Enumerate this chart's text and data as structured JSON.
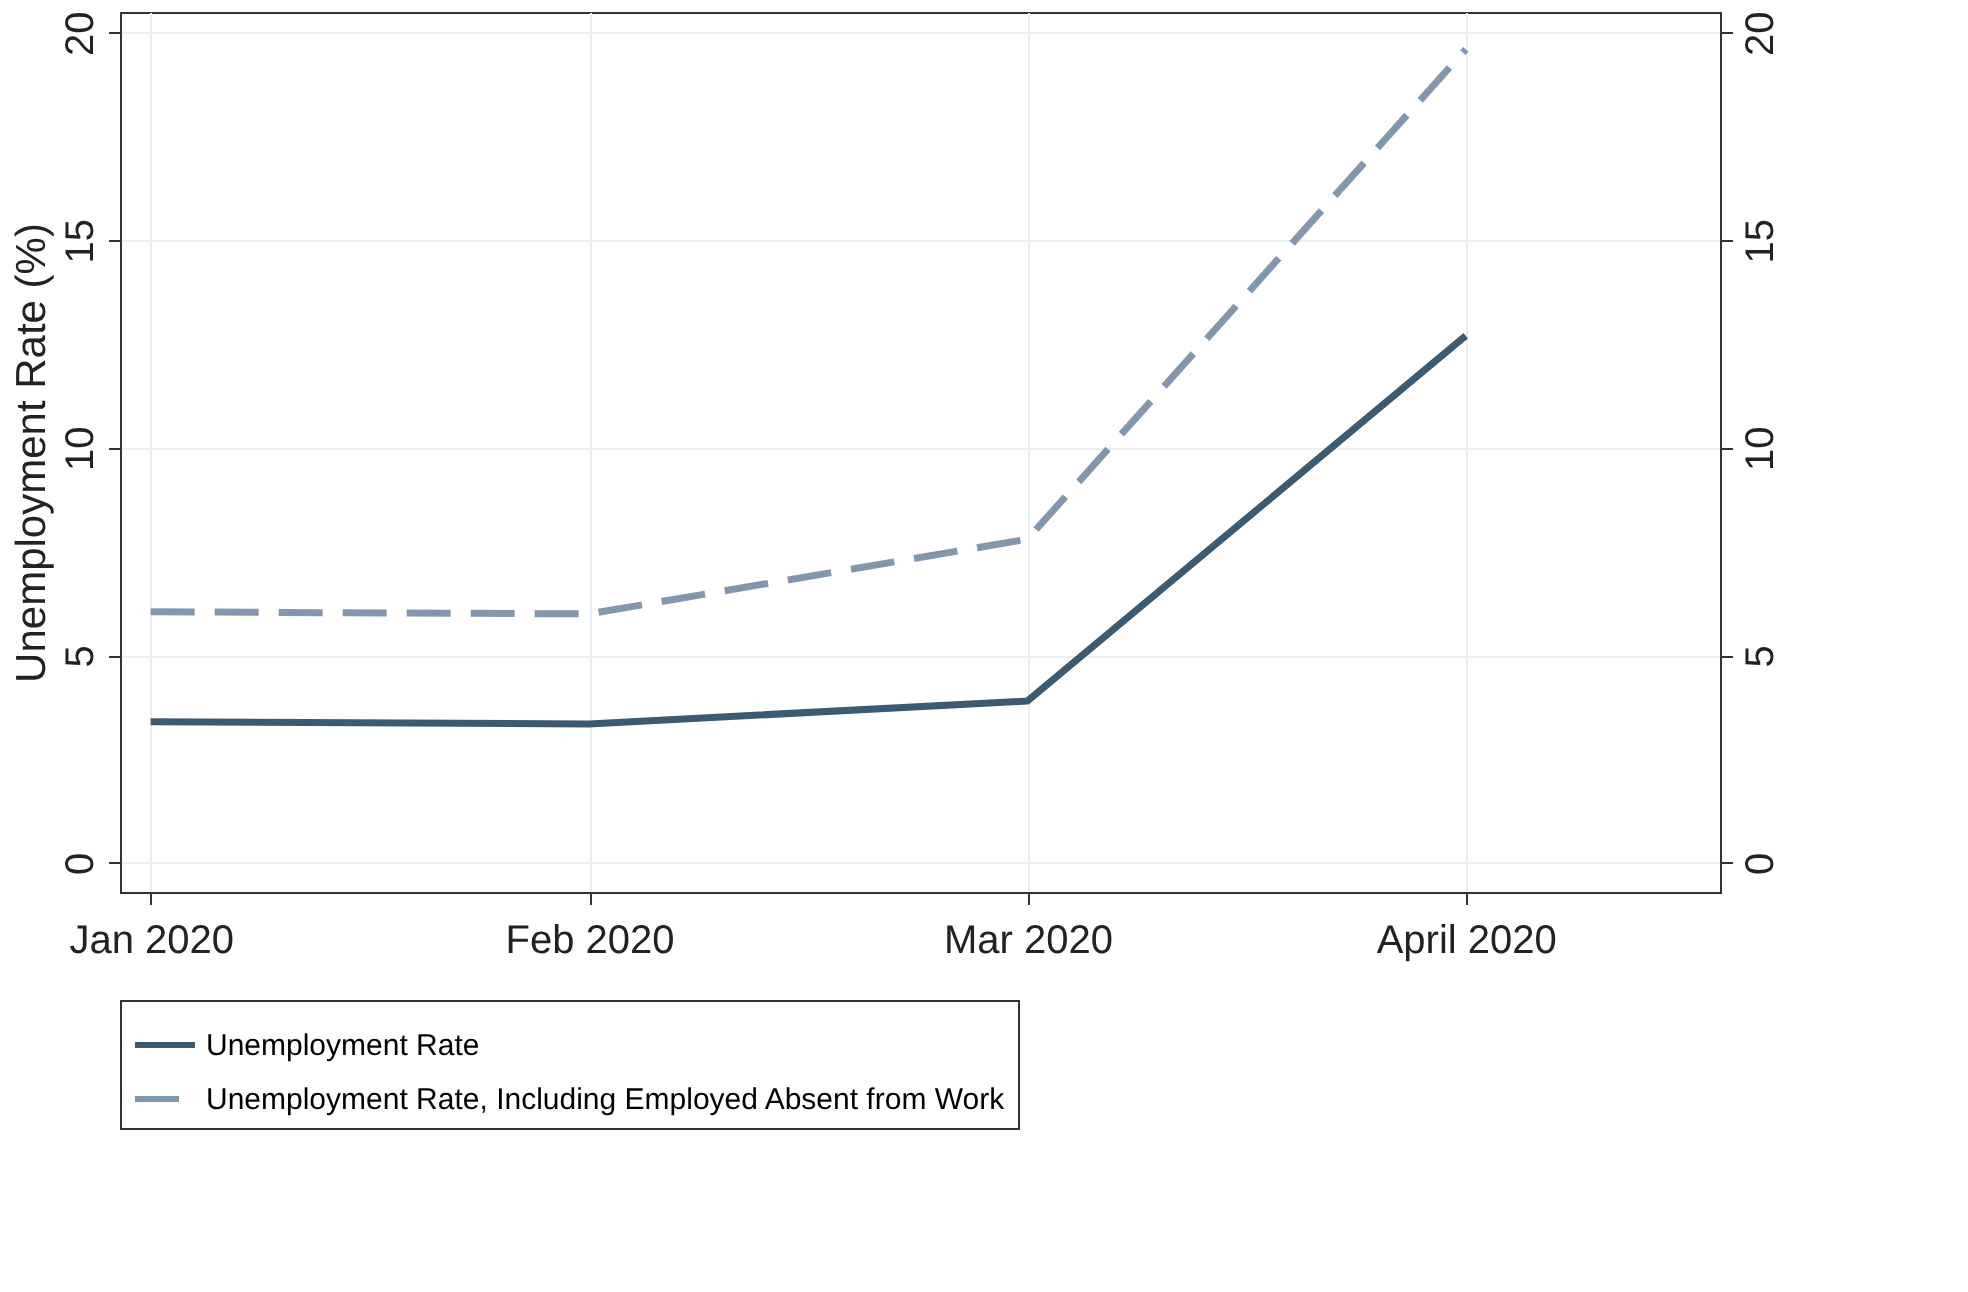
{
  "chart_data": {
    "type": "line",
    "ylabel": "Unemployment Rate (%)",
    "categories": [
      "Jan 2020",
      "Feb 2020",
      "Mar 2020",
      "April 2020"
    ],
    "series": [
      {
        "name": "Unemployment Rate",
        "color": "#3d5a73",
        "line_style": "solid",
        "values": [
          3.4,
          3.35,
          3.9,
          12.7
        ]
      },
      {
        "name": "Unemployment Rate, Including Employed Absent from Work",
        "color": "#8297ae",
        "line_style": "dashed",
        "values": [
          6.05,
          6.0,
          7.8,
          19.6
        ]
      }
    ],
    "ylim": [
      -0.7,
      20.5
    ],
    "yticks": [
      0,
      5,
      10,
      15,
      20
    ],
    "y2lim": [
      -0.7,
      20.5
    ],
    "y2ticks": [
      0,
      5,
      10,
      15,
      20
    ],
    "grid": true,
    "legend": "bottom",
    "marker": "none"
  }
}
